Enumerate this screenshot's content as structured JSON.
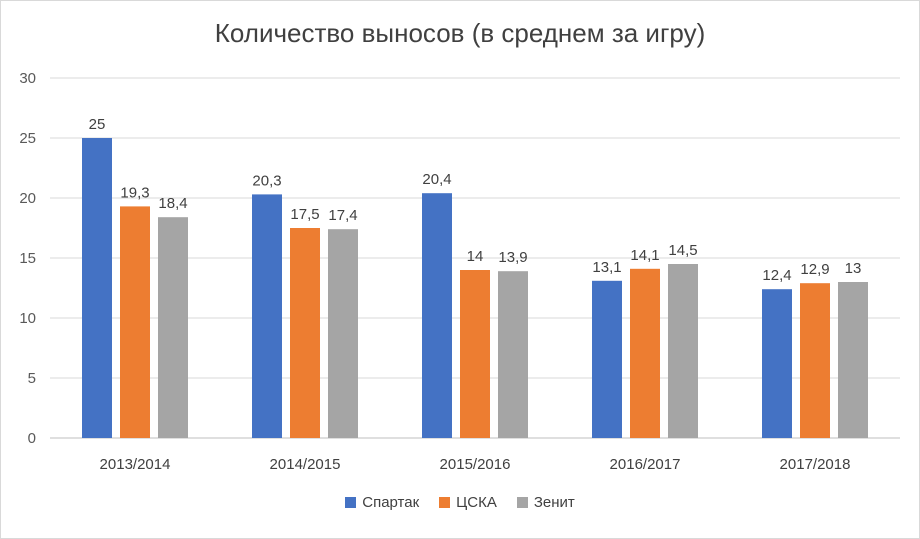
{
  "chart_data": {
    "type": "bar",
    "title": "Количество выносов (в среднем за игру)",
    "categories": [
      "2013/2014",
      "2014/2015",
      "2015/2016",
      "2016/2017",
      "2017/2018"
    ],
    "series": [
      {
        "name": "Спартак",
        "color": "#4472C4",
        "values": [
          25,
          20.3,
          20.4,
          13.1,
          12.4
        ],
        "labels": [
          "25",
          "20,3",
          "20,4",
          "13,1",
          "12,4"
        ]
      },
      {
        "name": "ЦСКА",
        "color": "#ED7D31",
        "values": [
          19.3,
          17.5,
          14,
          14.1,
          12.9
        ],
        "labels": [
          "19,3",
          "17,5",
          "14",
          "14,1",
          "12,9"
        ]
      },
      {
        "name": "Зенит",
        "color": "#A5A5A5",
        "values": [
          18.4,
          17.4,
          13.9,
          14.5,
          13
        ],
        "labels": [
          "18,4",
          "17,4",
          "13,9",
          "14,5",
          "13"
        ]
      }
    ],
    "yticks": [
      "0",
      "5",
      "10",
      "15",
      "20",
      "25",
      "30"
    ],
    "ylim": [
      0,
      30
    ],
    "grid": true,
    "legend_position": "bottom"
  }
}
